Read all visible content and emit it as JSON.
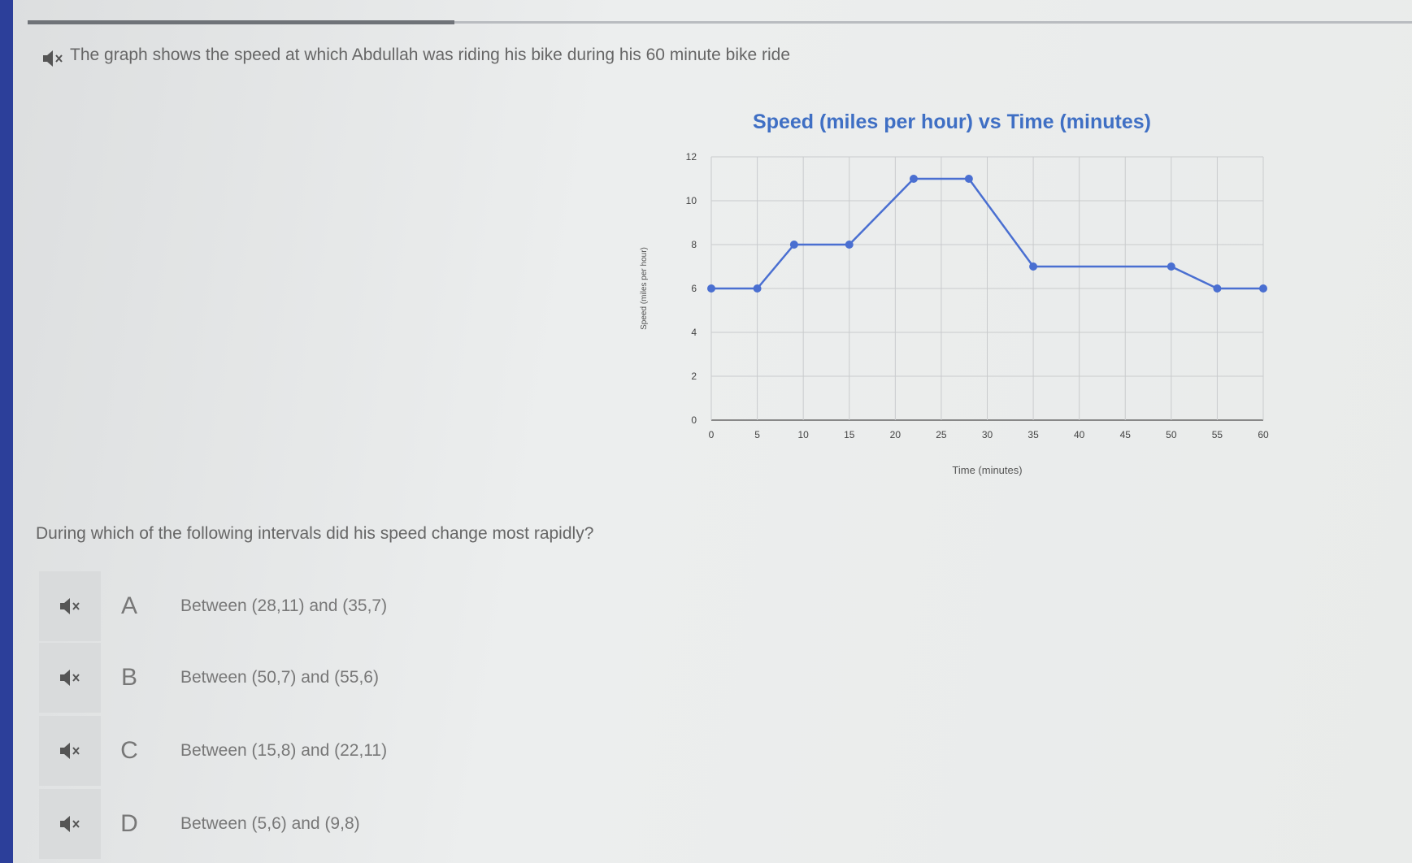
{
  "prompt": "The graph shows the speed at which Abdullah was riding his bike during his 60 minute bike ride",
  "chart_data": {
    "type": "line",
    "title": "Speed (miles per hour) vs  Time (minutes)",
    "x_label": "Time (minutes)",
    "y_label": "Speed (miles per hour)",
    "x": [
      0,
      5,
      9,
      15,
      22,
      28,
      35,
      50,
      55,
      60
    ],
    "values": [
      6,
      6,
      8,
      8,
      11,
      11,
      7,
      7,
      6,
      6
    ],
    "color": "#4a6fd1",
    "xlim": [
      0,
      60
    ],
    "xticks": [
      0,
      5,
      10,
      15,
      20,
      25,
      30,
      35,
      40,
      45,
      50,
      55,
      60
    ],
    "ylim": [
      0,
      12
    ],
    "yticks": [
      0,
      2,
      4,
      6,
      8,
      10,
      12
    ],
    "grid": true
  },
  "question": "During which of the following intervals did his speed change most rapidly?",
  "options": [
    {
      "letter": "A",
      "text": "Between (28,11) and (35,7)"
    },
    {
      "letter": "B",
      "text": "Between (50,7) and (55,6)"
    },
    {
      "letter": "C",
      "text": "Between (15,8) and (22,11)"
    },
    {
      "letter": "D",
      "text": "Between (5,6) and (9,8)"
    }
  ]
}
